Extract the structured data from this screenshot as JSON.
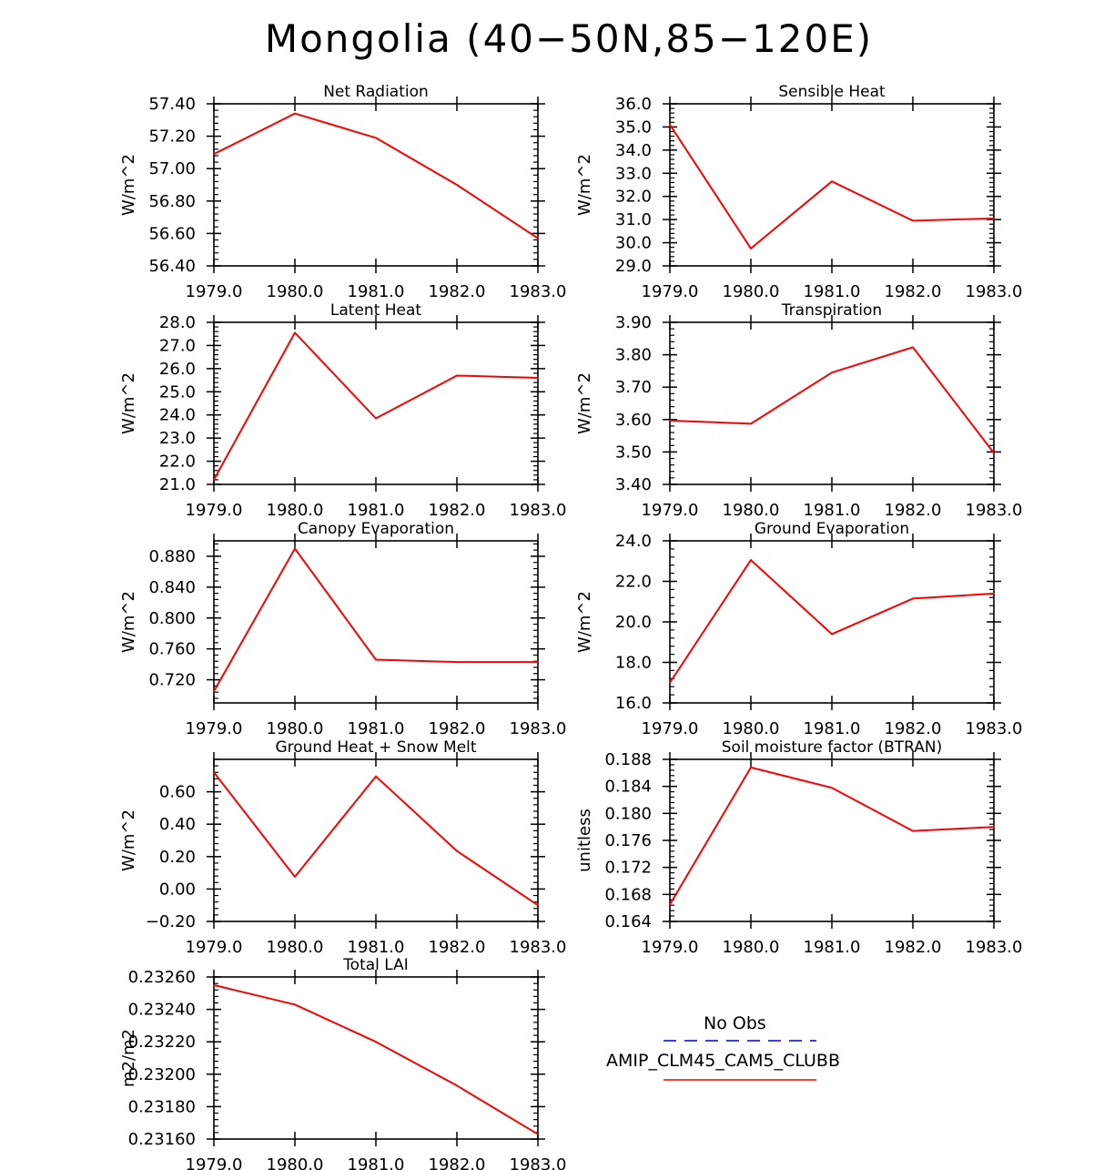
{
  "title": "Mongolia (40−50N,85−120E)",
  "colors": {
    "model_line": "#ff0000",
    "obs_line": "#0000cc",
    "axis": "#000000"
  },
  "legend": {
    "entries": [
      {
        "label": "No Obs",
        "style": "dashed",
        "color": "#0000cc"
      },
      {
        "label": "AMIP_CLM45_CAM5_CLUBB",
        "style": "solid",
        "color": "#ff0000"
      }
    ]
  },
  "chart_data": [
    {
      "type": "line",
      "title": "Net Radiation",
      "ylabel": "W/m^2",
      "x": [
        1979,
        1980,
        1981,
        1982,
        1983
      ],
      "xticks": [
        "1979.0",
        "1980.0",
        "1981.0",
        "1982.0",
        "1983.0"
      ],
      "ylim": [
        56.4,
        57.4
      ],
      "yticks": [
        56.4,
        56.6,
        56.8,
        57.0,
        57.2,
        57.4
      ],
      "ydecimals": 2,
      "yminor": 4,
      "series": [
        {
          "name": "AMIP_CLM45_CAM5_CLUBB",
          "values": [
            57.09,
            57.34,
            57.19,
            56.9,
            56.57
          ]
        }
      ]
    },
    {
      "type": "line",
      "title": "Sensible Heat",
      "ylabel": "W/m^2",
      "x": [
        1979,
        1980,
        1981,
        1982,
        1983
      ],
      "xticks": [
        "1979.0",
        "1980.0",
        "1981.0",
        "1982.0",
        "1983.0"
      ],
      "ylim": [
        29.0,
        36.0
      ],
      "yticks": [
        29,
        30,
        31,
        32,
        33,
        34,
        35,
        36
      ],
      "ydecimals": 1,
      "yminor": 4,
      "series": [
        {
          "name": "AMIP_CLM45_CAM5_CLUBB",
          "values": [
            35.1,
            29.75,
            32.65,
            30.95,
            31.05
          ]
        }
      ]
    },
    {
      "type": "line",
      "title": "Latent Heat",
      "ylabel": "W/m^2",
      "x": [
        1979,
        1980,
        1981,
        1982,
        1983
      ],
      "xticks": [
        "1979.0",
        "1980.0",
        "1981.0",
        "1982.0",
        "1983.0"
      ],
      "ylim": [
        21.0,
        28.0
      ],
      "yticks": [
        21,
        22,
        23,
        24,
        25,
        26,
        27,
        28
      ],
      "ydecimals": 1,
      "yminor": 4,
      "series": [
        {
          "name": "AMIP_CLM45_CAM5_CLUBB",
          "values": [
            21.2,
            27.55,
            23.85,
            25.7,
            25.6
          ]
        }
      ]
    },
    {
      "type": "line",
      "title": "Transpiration",
      "ylabel": "W/m^2",
      "x": [
        1979,
        1980,
        1981,
        1982,
        1983
      ],
      "xticks": [
        "1979.0",
        "1980.0",
        "1981.0",
        "1982.0",
        "1983.0"
      ],
      "ylim": [
        3.4,
        3.9
      ],
      "yticks": [
        3.4,
        3.5,
        3.6,
        3.7,
        3.8,
        3.9
      ],
      "ydecimals": 2,
      "yminor": 4,
      "series": [
        {
          "name": "AMIP_CLM45_CAM5_CLUBB",
          "values": [
            3.597,
            3.587,
            3.745,
            3.823,
            3.497
          ]
        }
      ]
    },
    {
      "type": "line",
      "title": "Canopy Evaporation",
      "ylabel": "W/m^2",
      "x": [
        1979,
        1980,
        1981,
        1982,
        1983
      ],
      "xticks": [
        "1979.0",
        "1980.0",
        "1981.0",
        "1982.0",
        "1983.0"
      ],
      "ylim": [
        0.69,
        0.9
      ],
      "yticks": [
        0.72,
        0.76,
        0.8,
        0.84,
        0.88
      ],
      "ydecimals": 3,
      "yminor": 4,
      "series": [
        {
          "name": "AMIP_CLM45_CAM5_CLUBB",
          "values": [
            0.705,
            0.89,
            0.746,
            0.743,
            0.743
          ]
        }
      ]
    },
    {
      "type": "line",
      "title": "Ground Evaporation",
      "ylabel": "W/m^2",
      "x": [
        1979,
        1980,
        1981,
        1982,
        1983
      ],
      "xticks": [
        "1979.0",
        "1980.0",
        "1981.0",
        "1982.0",
        "1983.0"
      ],
      "ylim": [
        16.0,
        24.0
      ],
      "yticks": [
        16,
        18,
        20,
        22,
        24
      ],
      "ydecimals": 1,
      "yminor": 4,
      "series": [
        {
          "name": "AMIP_CLM45_CAM5_CLUBB",
          "values": [
            17.0,
            23.05,
            19.4,
            21.15,
            21.4
          ]
        }
      ]
    },
    {
      "type": "line",
      "title": "Ground Heat + Snow Melt",
      "ylabel": "W/m^2",
      "x": [
        1979,
        1980,
        1981,
        1982,
        1983
      ],
      "xticks": [
        "1979.0",
        "1980.0",
        "1981.0",
        "1982.0",
        "1983.0"
      ],
      "ylim": [
        -0.2,
        0.8
      ],
      "yticks": [
        -0.2,
        0.0,
        0.2,
        0.4,
        0.6
      ],
      "ydecimals": 2,
      "yminor": 4,
      "series": [
        {
          "name": "AMIP_CLM45_CAM5_CLUBB",
          "values": [
            0.72,
            0.075,
            0.695,
            0.235,
            -0.1
          ]
        }
      ]
    },
    {
      "type": "line",
      "title": "Soil moisture factor (BTRAN)",
      "ylabel": "unitless",
      "x": [
        1979,
        1980,
        1981,
        1982,
        1983
      ],
      "xticks": [
        "1979.0",
        "1980.0",
        "1981.0",
        "1982.0",
        "1983.0"
      ],
      "ylim": [
        0.164,
        0.188
      ],
      "yticks": [
        0.164,
        0.168,
        0.172,
        0.176,
        0.18,
        0.184,
        0.188
      ],
      "ydecimals": 3,
      "yminor": 4,
      "series": [
        {
          "name": "AMIP_CLM45_CAM5_CLUBB",
          "values": [
            0.1665,
            0.1868,
            0.1838,
            0.1774,
            0.178
          ]
        }
      ]
    },
    {
      "type": "line",
      "title": "Total LAI",
      "ylabel": "m2/m2",
      "x": [
        1979,
        1980,
        1981,
        1982,
        1983
      ],
      "xticks": [
        "1979.0",
        "1980.0",
        "1981.0",
        "1982.0",
        "1983.0"
      ],
      "ylim": [
        0.2316,
        0.2326
      ],
      "yticks": [
        0.2316,
        0.2318,
        0.232,
        0.2322,
        0.2324,
        0.2326
      ],
      "ydecimals": 5,
      "yminor": 4,
      "series": [
        {
          "name": "AMIP_CLM45_CAM5_CLUBB",
          "values": [
            0.23255,
            0.23243,
            0.2322,
            0.23193,
            0.23163
          ]
        }
      ]
    }
  ]
}
